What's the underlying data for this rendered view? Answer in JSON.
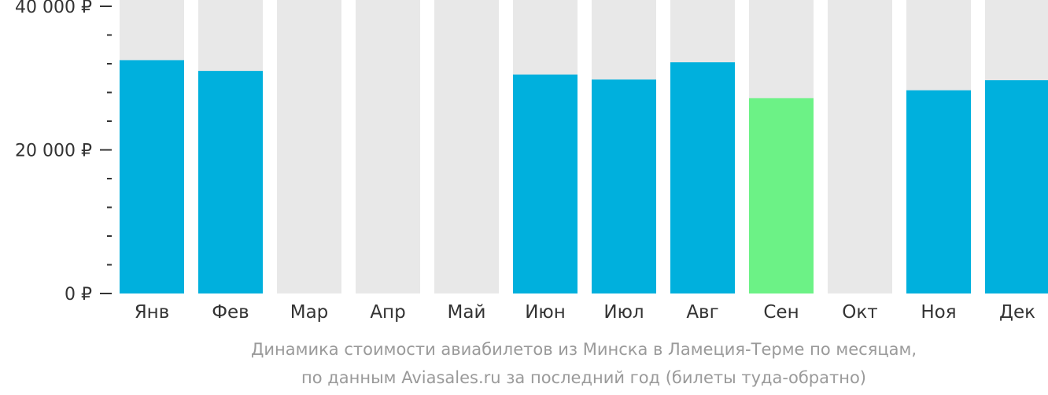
{
  "chart_data": {
    "type": "bar",
    "categories": [
      "Янв",
      "Фев",
      "Мар",
      "Апр",
      "Май",
      "Июн",
      "Июл",
      "Авг",
      "Сен",
      "Окт",
      "Ноя",
      "Дек"
    ],
    "values": [
      32500,
      31000,
      null,
      null,
      null,
      30500,
      29800,
      32200,
      27200,
      null,
      28300,
      29700
    ],
    "highlight_index": 8,
    "ylim": [
      0,
      40000
    ],
    "y_ticks": [
      {
        "value": 0,
        "label": "0 ₽"
      },
      {
        "value": 20000,
        "label": "20 000 ₽"
      },
      {
        "value": 40000,
        "label": "40 000 ₽"
      }
    ],
    "minor_tick_step": 4000,
    "colors": {
      "bar": "#00b0dd",
      "highlight": "#6cf286",
      "background": "#e8e8e8",
      "axis_text": "#333333"
    }
  },
  "caption": {
    "line1": "Динамика стоимости авиабилетов из Минска в Ламеция-Терме по месяцам,",
    "line2": "по данным Aviasales.ru за последний год (билеты туда-обратно)"
  }
}
